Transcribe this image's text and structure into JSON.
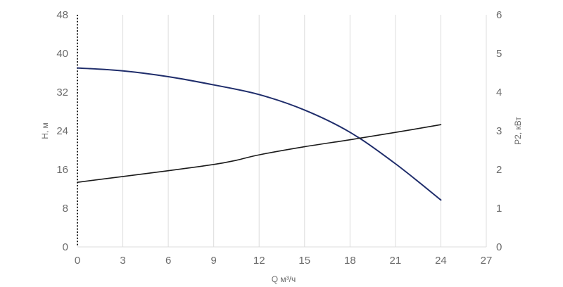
{
  "chart_data": {
    "type": "line",
    "xlabel": "Q м³/ч",
    "ylabel_left": "H, м",
    "ylabel_right": "P2, кВт",
    "xlim": [
      0,
      27
    ],
    "ylim_left": [
      0,
      48
    ],
    "ylim_right": [
      0,
      6
    ],
    "x_ticks": [
      0,
      3,
      6,
      9,
      12,
      15,
      18,
      21,
      24,
      27
    ],
    "y_left_ticks": [
      0,
      8,
      16,
      24,
      32,
      40,
      48
    ],
    "y_right_ticks": [
      0,
      1,
      2,
      3,
      4,
      5,
      6
    ],
    "grid": "vertical",
    "series": [
      {
        "axis": "left",
        "color": "#1f2d6b",
        "x": [
          0,
          3,
          6,
          9,
          12,
          15,
          18,
          21,
          24
        ],
        "y": [
          37,
          36.4,
          35.2,
          33.5,
          31.5,
          28.3,
          23.7,
          17.2,
          9.7
        ]
      },
      {
        "axis": "right",
        "color": "#1a1a1a",
        "x": [
          0,
          3,
          6,
          9,
          10.5,
          12,
          15,
          18,
          21,
          24
        ],
        "y": [
          1.67,
          1.82,
          1.97,
          2.13,
          2.24,
          2.38,
          2.59,
          2.77,
          2.96,
          3.16
        ]
      }
    ]
  }
}
